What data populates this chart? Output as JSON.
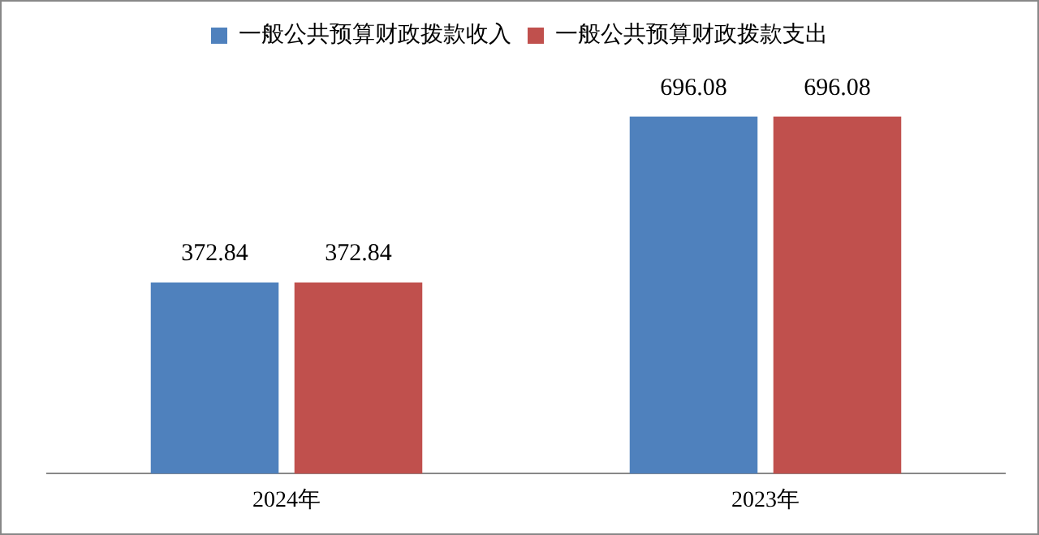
{
  "chart_data": {
    "type": "bar",
    "categories": [
      "2024年",
      "2023年"
    ],
    "series": [
      {
        "name": "一般公共预算财政拨款收入",
        "color": "#4f81bd",
        "values": [
          372.84,
          696.08
        ]
      },
      {
        "name": "一般公共预算财政拨款支出",
        "color": "#c0504d",
        "values": [
          372.84,
          696.08
        ]
      }
    ],
    "tick_labels": "x",
    "data_labels": true,
    "grid": false,
    "legend": "top"
  }
}
